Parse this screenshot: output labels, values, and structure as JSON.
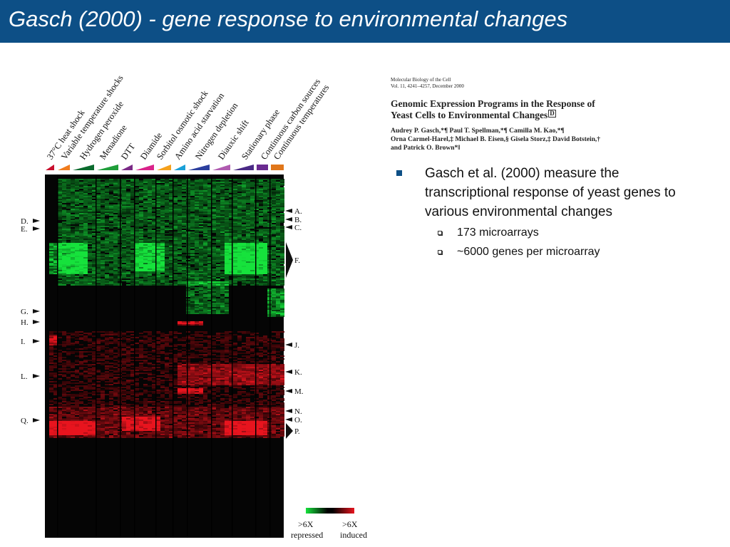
{
  "slide": {
    "title": "Gasch (2000) - gene response to environmental changes"
  },
  "paper": {
    "journal_line1": "Molecular Biology of the Cell",
    "journal_line2": "Vol. 11, 4241–4257, December 2000",
    "title_line1": "Genomic Expression Programs in the Response of",
    "title_line2": "Yeast Cells to Environmental Changes",
    "title_badge": "D",
    "authors_line1": "Audrey P. Gasch,*¶ Paul T. Spellman,*¶ Camilla M. Kao,*¶",
    "authors_line2": "Orna Carmel-Harel,‡ Michael B. Eisen,§ Gisela Storz,‡ David Botstein,†",
    "authors_line3": "and Patrick O. Brown*‖"
  },
  "bullets": {
    "main": "Gasch et al. (2000) measure the transcriptional response of yeast genes to various environmental changes",
    "sub1": "173 microarrays",
    "sub2": "~6000 genes per microarray"
  },
  "figure": {
    "conditions": [
      {
        "label": "37°C heat shock",
        "color": "#c8102e"
      },
      {
        "label": "Variable temperature shocks",
        "color": "#f07c1e"
      },
      {
        "label": "Hydrogen peroxide",
        "color": "#0b6b2e"
      },
      {
        "label": "Menadione",
        "color": "#1f9e3a"
      },
      {
        "label": "DTT",
        "color": "#7a2a86"
      },
      {
        "label": "Diamide",
        "color": "#d9238a"
      },
      {
        "label": "Sorbitol osmotic shock",
        "color": "#f5a11c"
      },
      {
        "label": "Amino acid starvation",
        "color": "#1aa0d8"
      },
      {
        "label": "Nitrogen depletion",
        "color": "#2c3f9e"
      },
      {
        "label": "Diauxic shift",
        "color": "#b05bb0"
      },
      {
        "label": "Stationary phase",
        "color": "#4a2a86"
      },
      {
        "label": "Continuous carbon sources",
        "color": "#6a2a90"
      },
      {
        "label": "Continuous temperatures",
        "color": "#e0761a"
      }
    ],
    "left_markers": [
      "D.",
      "E.",
      "G.",
      "H.",
      "I.",
      "L.",
      "Q."
    ],
    "right_markers": [
      "A.",
      "B.",
      "C.",
      "F.",
      "J.",
      "K.",
      "M.",
      "N.",
      "O.",
      "P."
    ],
    "legend_left_value": ">6X",
    "legend_left_label": "repressed",
    "legend_right_value": ">6X",
    "legend_right_label": "induced",
    "colors": {
      "induced": "#e8141e",
      "repressed": "#16e23c",
      "zero": "#000000"
    }
  }
}
